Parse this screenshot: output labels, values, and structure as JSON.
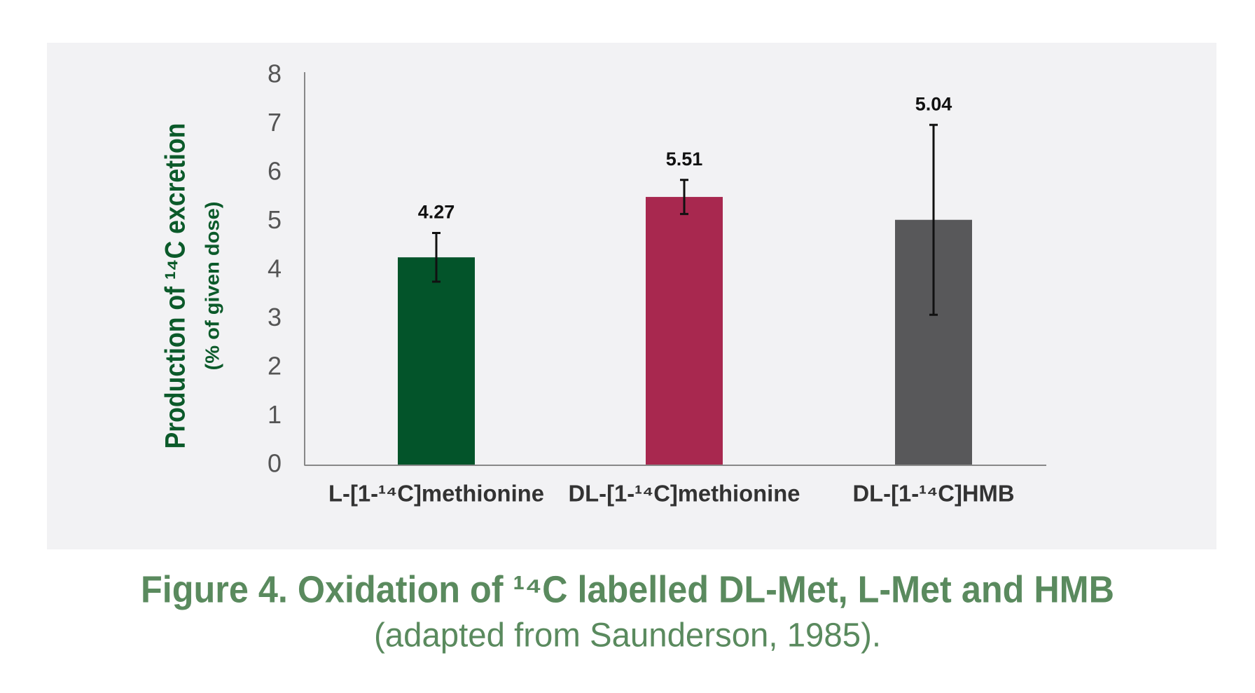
{
  "chart_data": {
    "type": "bar",
    "y_label": "Production of ¹⁴C excretion",
    "y_sublabel": "(% of given dose)",
    "caption": "Figure 4. Oxidation of ¹⁴C labelled DL-Met, L-Met and HMB",
    "caption_note": "(adapted from Saunderson, 1985).",
    "categories": [
      "L-[1-¹⁴C]methionine",
      "DL-[1-¹⁴C]methionine",
      "DL-[1-¹⁴C]HMB"
    ],
    "values": [
      4.27,
      5.51,
      5.04
    ],
    "errors": [
      0.5,
      0.35,
      1.95
    ],
    "colors": [
      "#03542a",
      "#a8284f",
      "#58585a"
    ],
    "ylim": [
      0,
      8
    ],
    "yticks": [
      0,
      1,
      2,
      3,
      4,
      5,
      6,
      7,
      8
    ]
  }
}
